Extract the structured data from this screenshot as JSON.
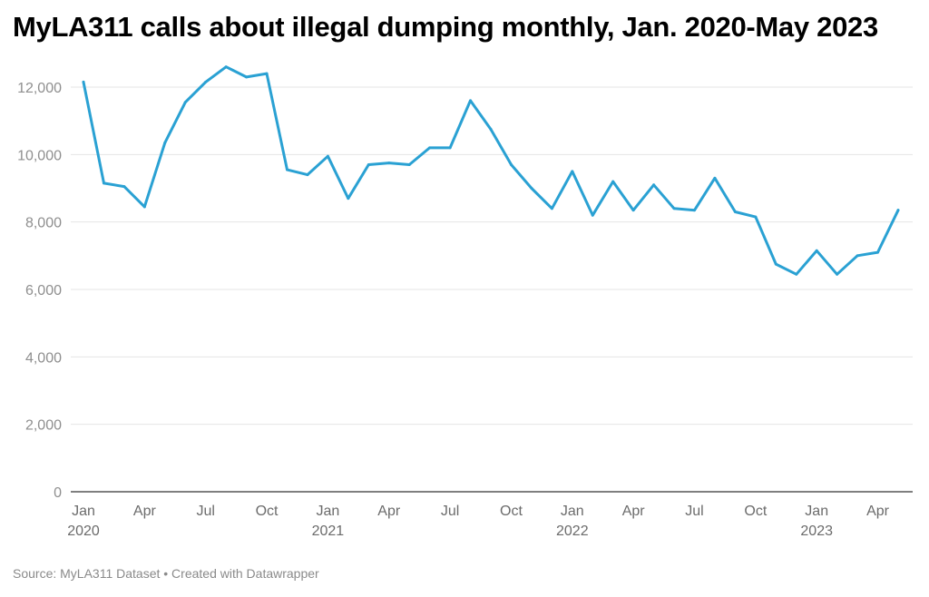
{
  "chart_data": {
    "type": "line",
    "title": "MyLA311 calls about illegal dumping monthly, Jan. 2020-May 2023",
    "xlabel": "",
    "ylabel": "",
    "ylim": [
      0,
      12000
    ],
    "yticks": [
      0,
      2000,
      4000,
      6000,
      8000,
      10000,
      12000
    ],
    "ytick_labels": [
      "0",
      "2,000",
      "4,000",
      "6,000",
      "8,000",
      "10,000",
      "12,000"
    ],
    "grid": true,
    "color": "#2aa1d3",
    "x": [
      "2020-01",
      "2020-02",
      "2020-03",
      "2020-04",
      "2020-05",
      "2020-06",
      "2020-07",
      "2020-08",
      "2020-09",
      "2020-10",
      "2020-11",
      "2020-12",
      "2021-01",
      "2021-02",
      "2021-03",
      "2021-04",
      "2021-05",
      "2021-06",
      "2021-07",
      "2021-08",
      "2021-09",
      "2021-10",
      "2021-11",
      "2021-12",
      "2022-01",
      "2022-02",
      "2022-03",
      "2022-04",
      "2022-05",
      "2022-06",
      "2022-07",
      "2022-08",
      "2022-09",
      "2022-10",
      "2022-11",
      "2022-12",
      "2023-01",
      "2023-02",
      "2023-03",
      "2023-04",
      "2023-05"
    ],
    "values": [
      12150,
      9150,
      9050,
      8450,
      10350,
      11550,
      12150,
      12600,
      12300,
      12400,
      9550,
      9400,
      9950,
      8700,
      9700,
      9750,
      9700,
      10200,
      10200,
      11600,
      10750,
      9700,
      9000,
      8400,
      9500,
      8200,
      9200,
      8350,
      9100,
      8400,
      8350,
      9300,
      8300,
      8150,
      6750,
      6450,
      7150,
      6450,
      7000,
      7100,
      8350
    ],
    "xticks": [
      {
        "index": 0,
        "label": "Jan",
        "year": "2020"
      },
      {
        "index": 3,
        "label": "Apr",
        "year": ""
      },
      {
        "index": 6,
        "label": "Jul",
        "year": ""
      },
      {
        "index": 9,
        "label": "Oct",
        "year": ""
      },
      {
        "index": 12,
        "label": "Jan",
        "year": "2021"
      },
      {
        "index": 15,
        "label": "Apr",
        "year": ""
      },
      {
        "index": 18,
        "label": "Jul",
        "year": ""
      },
      {
        "index": 21,
        "label": "Oct",
        "year": ""
      },
      {
        "index": 24,
        "label": "Jan",
        "year": "2022"
      },
      {
        "index": 27,
        "label": "Apr",
        "year": ""
      },
      {
        "index": 30,
        "label": "Jul",
        "year": ""
      },
      {
        "index": 33,
        "label": "Oct",
        "year": ""
      },
      {
        "index": 36,
        "label": "Jan",
        "year": "2023"
      },
      {
        "index": 39,
        "label": "Apr",
        "year": ""
      }
    ]
  },
  "footer": "Source: MyLA311 Dataset • Created with Datawrapper"
}
